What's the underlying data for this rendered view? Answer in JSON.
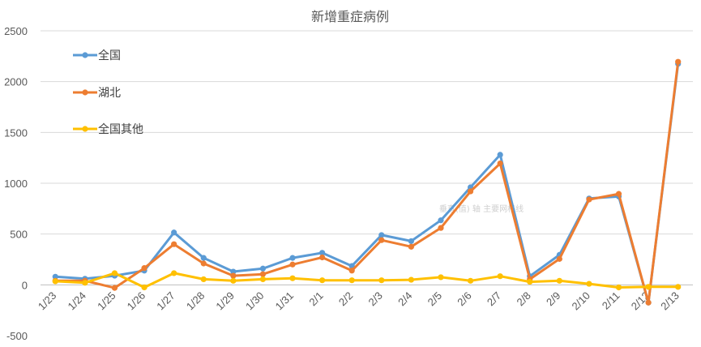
{
  "chart_data": {
    "type": "line",
    "title": "新增重症病例",
    "xlabel": "",
    "ylabel": "",
    "categories": [
      "1/23",
      "1/24",
      "1/25",
      "1/26",
      "1/27",
      "1/28",
      "1/29",
      "1/30",
      "1/31",
      "2/1",
      "2/2",
      "2/3",
      "2/4",
      "2/5",
      "2/6",
      "2/7",
      "2/8",
      "2/9",
      "2/10",
      "2/11",
      "2/12",
      "2/13"
    ],
    "ylim": [
      -500,
      2500
    ],
    "yticks": [
      -500,
      0,
      500,
      1000,
      1500,
      2000,
      2500
    ],
    "grid": true,
    "legend_position": "top-left",
    "series": [
      {
        "name": "全国",
        "color": "#5B9BD5",
        "values": [
          80,
          60,
          90,
          140,
          515,
          265,
          130,
          160,
          265,
          315,
          185,
          490,
          430,
          635,
          960,
          1280,
          85,
          295,
          850,
          870,
          -175,
          2175
        ]
      },
      {
        "name": "湖北",
        "color": "#ED7D31",
        "values": [
          40,
          40,
          -30,
          165,
          400,
          210,
          90,
          105,
          200,
          270,
          140,
          440,
          375,
          560,
          920,
          1195,
          55,
          255,
          840,
          895,
          -175,
          2195
        ]
      },
      {
        "name": "全国其他",
        "color": "#FFC000",
        "values": [
          35,
          20,
          115,
          -25,
          115,
          55,
          40,
          55,
          65,
          45,
          45,
          45,
          50,
          75,
          40,
          85,
          30,
          40,
          10,
          -25,
          -20,
          -20
        ]
      }
    ]
  },
  "watermark": "垂直(值) 轴 主要网格线"
}
